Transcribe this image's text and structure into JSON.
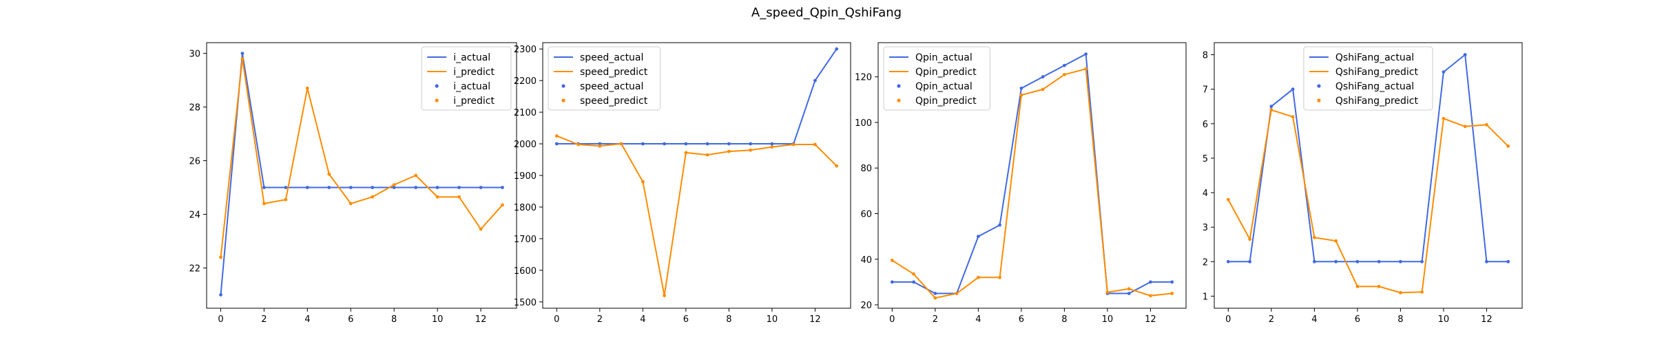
{
  "figure_title": "A_speed_Qpin_QshiFang",
  "colors": {
    "actual": "#4169e1",
    "predict": "#ff8c00"
  },
  "chart_data": [
    {
      "type": "line",
      "x": [
        0,
        1,
        2,
        3,
        4,
        5,
        6,
        7,
        8,
        9,
        10,
        11,
        12,
        13
      ],
      "xticks": [
        0,
        2,
        4,
        6,
        8,
        10,
        12
      ],
      "ylim": [
        20.5,
        30.4
      ],
      "yticks": [
        22,
        24,
        26,
        28,
        30
      ],
      "legend_position": "top-right",
      "legend": [
        "i_actual",
        "i_predict",
        "i_actual",
        "i_predict"
      ],
      "series": [
        {
          "name": "i_actual",
          "values": [
            21,
            30,
            25,
            25,
            25,
            25,
            25,
            25,
            25,
            25,
            25,
            25,
            25,
            25
          ]
        },
        {
          "name": "i_predict",
          "values": [
            22.4,
            29.8,
            24.4,
            24.55,
            28.7,
            25.5,
            24.4,
            24.65,
            25.1,
            25.45,
            24.65,
            24.65,
            23.45,
            24.35
          ]
        }
      ]
    },
    {
      "type": "line",
      "x": [
        0,
        1,
        2,
        3,
        4,
        5,
        6,
        7,
        8,
        9,
        10,
        11,
        12,
        13
      ],
      "xticks": [
        0,
        2,
        4,
        6,
        8,
        10,
        12
      ],
      "ylim": [
        1480,
        2320
      ],
      "yticks": [
        1500,
        1600,
        1700,
        1800,
        1900,
        2000,
        2100,
        2200,
        2300
      ],
      "legend_position": "top-left",
      "legend": [
        "speed_actual",
        "speed_predict",
        "speed_actual",
        "speed_predict"
      ],
      "series": [
        {
          "name": "speed_actual",
          "values": [
            2000,
            2000,
            2000,
            2000,
            2000,
            2000,
            2000,
            2000,
            2000,
            2000,
            2000,
            2000,
            2200,
            2300
          ]
        },
        {
          "name": "speed_predict",
          "values": [
            2025,
            1998,
            1993,
            2000,
            1880,
            1520,
            1972,
            1965,
            1976,
            1980,
            1990,
            1998,
            1998,
            1930
          ]
        }
      ]
    },
    {
      "type": "line",
      "x": [
        0,
        1,
        2,
        3,
        4,
        5,
        6,
        7,
        8,
        9,
        10,
        11,
        12,
        13
      ],
      "xticks": [
        0,
        2,
        4,
        6,
        8,
        10,
        12
      ],
      "ylim": [
        18.5,
        135
      ],
      "yticks": [
        20,
        40,
        60,
        80,
        100,
        120
      ],
      "legend_position": "top-left",
      "legend": [
        "Qpin_actual",
        "Qpin_predict",
        "Qpin_actual",
        "Qpin_predict"
      ],
      "series": [
        {
          "name": "Qpin_actual",
          "values": [
            30,
            30,
            25,
            25,
            50,
            55,
            115,
            120,
            125,
            130,
            25,
            25,
            30,
            30
          ]
        },
        {
          "name": "Qpin_predict",
          "values": [
            39.5,
            33.5,
            23,
            25,
            32,
            32,
            112,
            114.5,
            121,
            123.5,
            25.5,
            27,
            24,
            25
          ]
        }
      ]
    },
    {
      "type": "line",
      "x": [
        0,
        1,
        2,
        3,
        4,
        5,
        6,
        7,
        8,
        9,
        10,
        11,
        12,
        13
      ],
      "xticks": [
        0,
        2,
        4,
        6,
        8,
        10,
        12
      ],
      "ylim": [
        0.65,
        8.35
      ],
      "yticks": [
        1,
        2,
        3,
        4,
        5,
        6,
        7,
        8
      ],
      "legend_position": "top-center",
      "legend": [
        "QshiFang_actual",
        "QshiFang_predict",
        "QshiFang_actual",
        "QshiFang_predict"
      ],
      "series": [
        {
          "name": "QshiFang_actual",
          "values": [
            2,
            2,
            6.5,
            7,
            2,
            2,
            2,
            2,
            2,
            2,
            7.5,
            8,
            2,
            2
          ]
        },
        {
          "name": "QshiFang_predict",
          "values": [
            3.8,
            2.65,
            6.4,
            6.2,
            2.7,
            2.6,
            1.28,
            1.28,
            1.1,
            1.12,
            6.15,
            5.92,
            5.97,
            5.35
          ]
        }
      ]
    }
  ]
}
